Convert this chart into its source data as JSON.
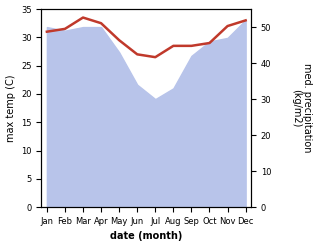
{
  "months": [
    "Jan",
    "Feb",
    "Mar",
    "Apr",
    "May",
    "Jun",
    "Jul",
    "Aug",
    "Sep",
    "Oct",
    "Nov",
    "Dec"
  ],
  "max_temp": [
    31.0,
    31.5,
    33.5,
    32.5,
    29.5,
    27.0,
    26.5,
    28.5,
    28.5,
    29.0,
    32.0,
    33.0
  ],
  "precipitation": [
    50.0,
    49.0,
    50.0,
    50.0,
    43.0,
    34.0,
    30.0,
    33.0,
    42.0,
    46.0,
    47.0,
    52.0
  ],
  "temp_color": "#c0392b",
  "precip_fill_color": "#b8c4ea",
  "title": "",
  "xlabel": "date (month)",
  "ylabel_left": "max temp (C)",
  "ylabel_right": "med. precipitation\n(kg/m2)",
  "ylim_left": [
    0,
    35
  ],
  "ylim_right": [
    0,
    55
  ],
  "yticks_left": [
    0,
    5,
    10,
    15,
    20,
    25,
    30,
    35
  ],
  "yticks_right": [
    0,
    10,
    20,
    30,
    40,
    50
  ],
  "temp_linewidth": 1.8,
  "bg_color": "#ffffff"
}
